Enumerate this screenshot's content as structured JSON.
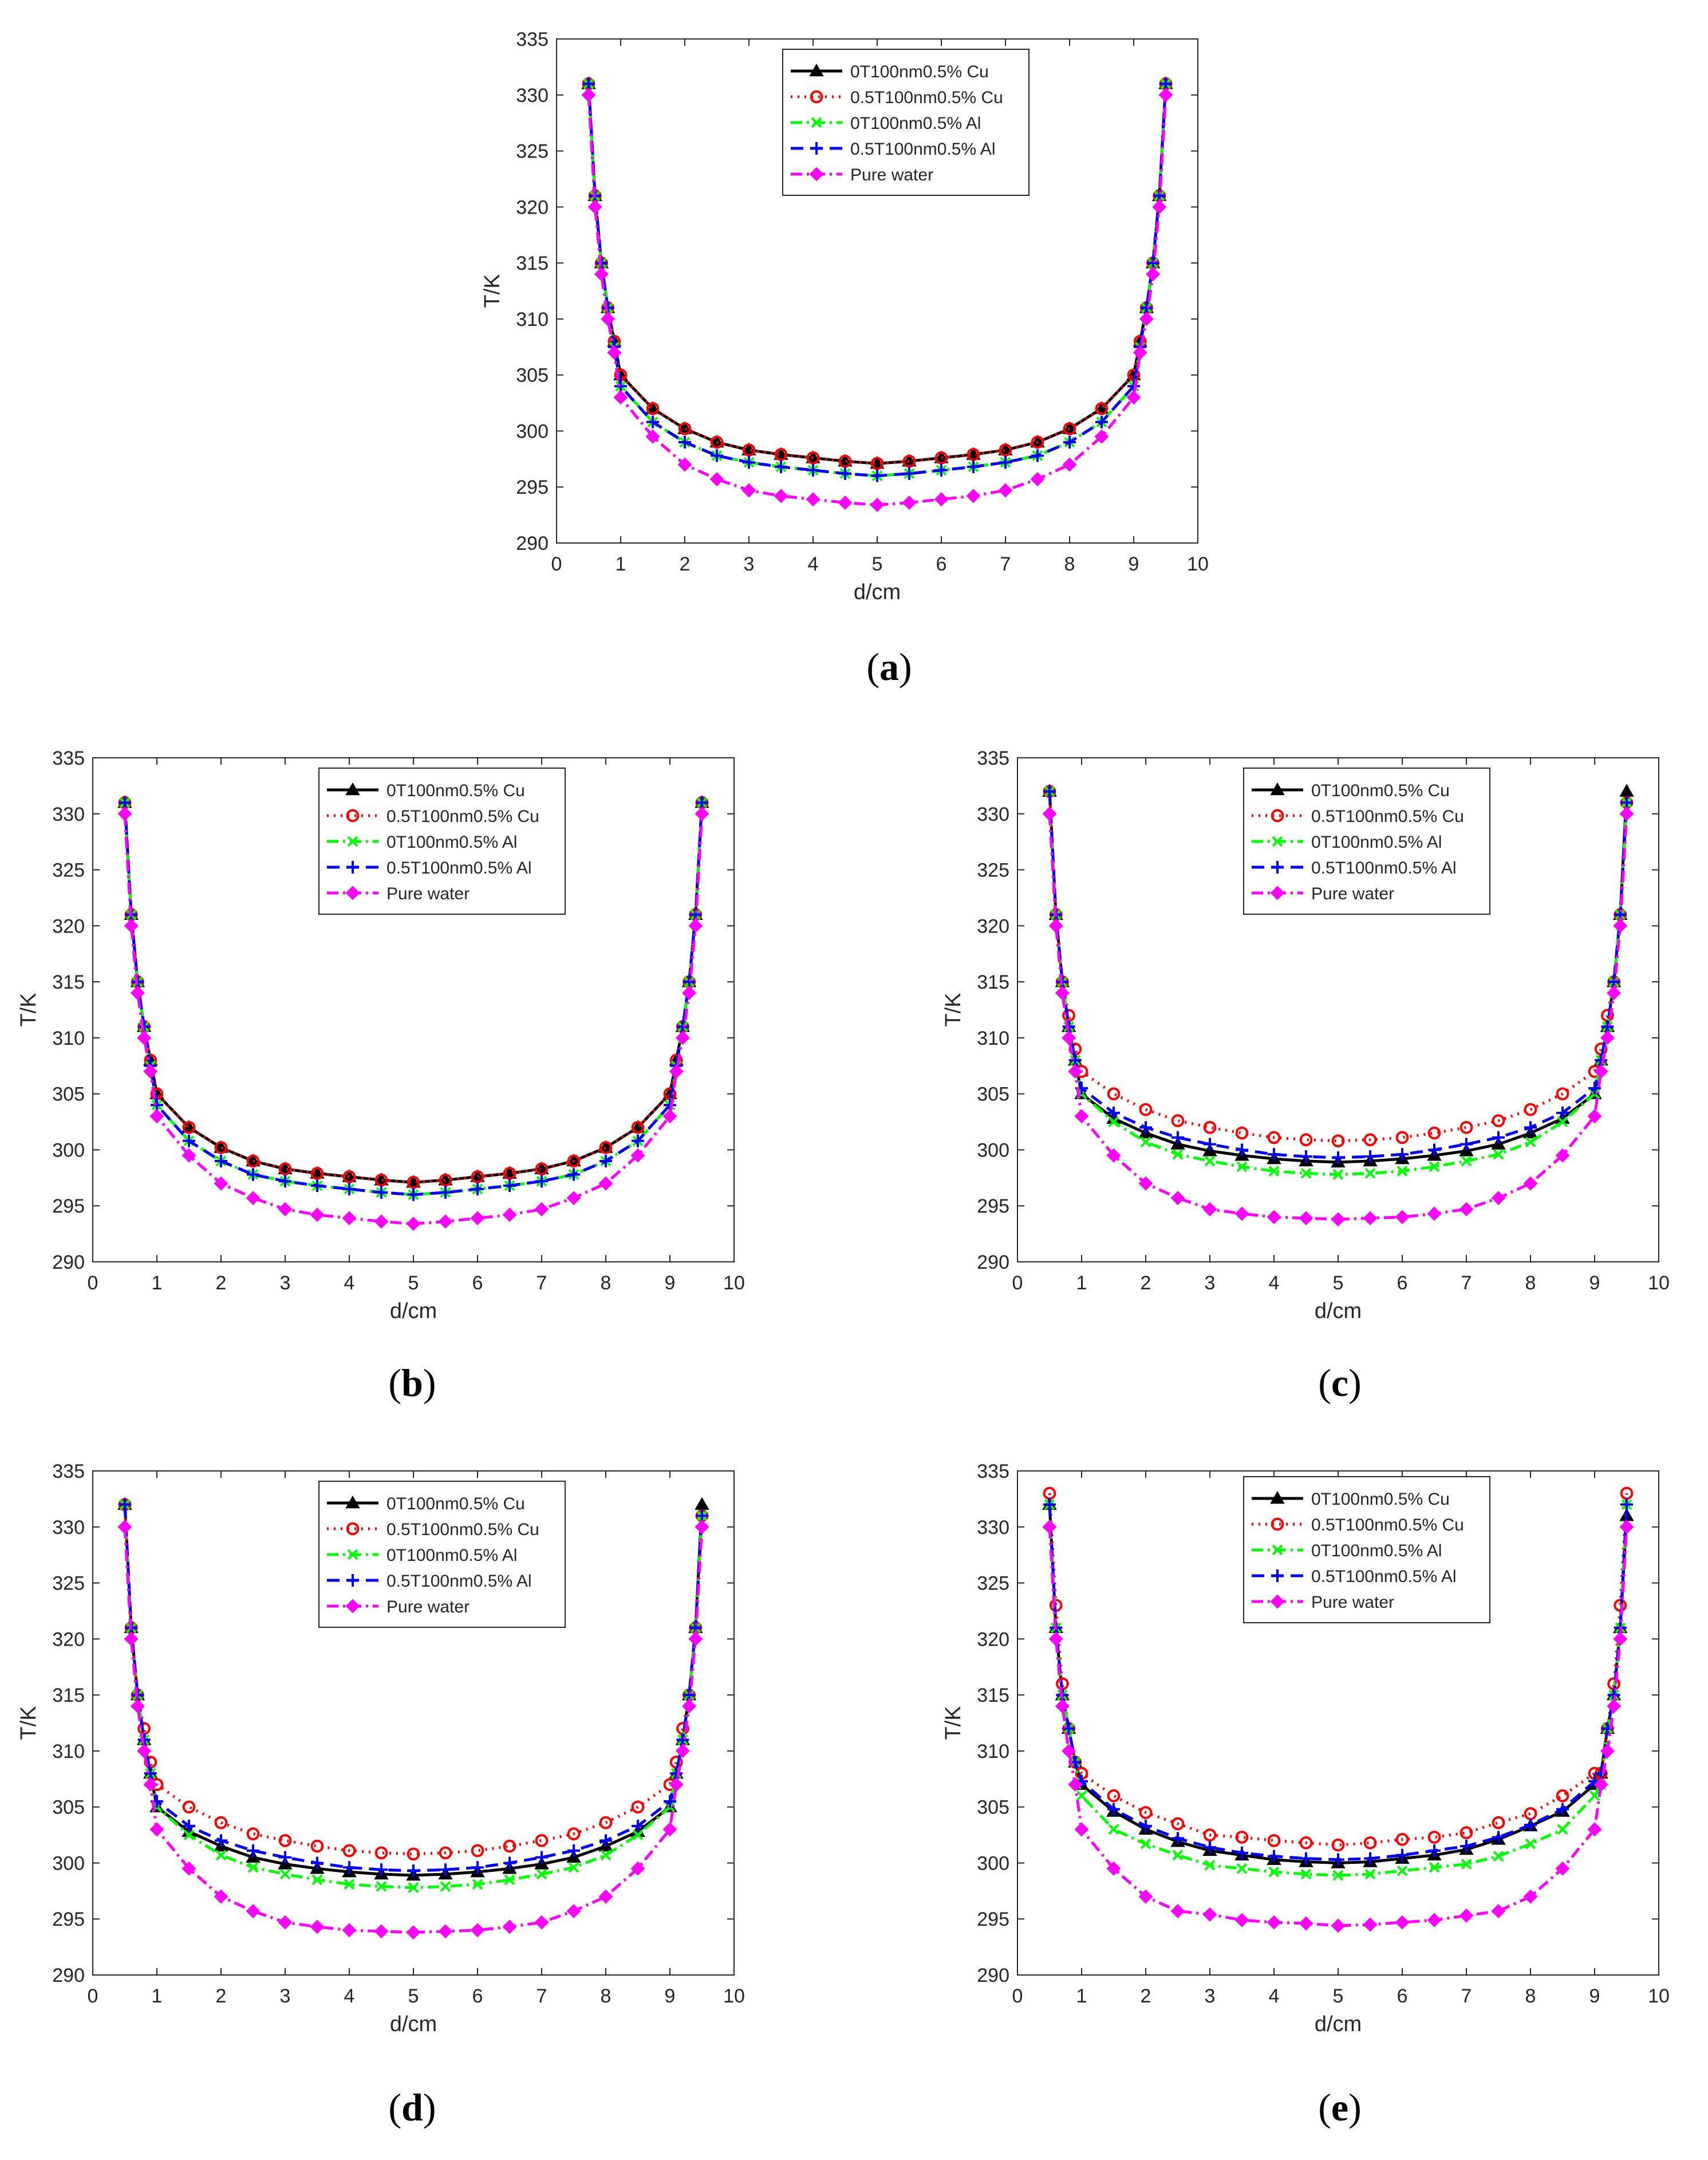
{
  "colors": {
    "axis": "#262626",
    "background": "#ffffff",
    "series": [
      "#000000",
      "#ff0000",
      "#00ff00",
      "#0000ff",
      "#ff00ff"
    ]
  },
  "chart_data": [
    {
      "type": "line",
      "panel": "a",
      "panel_label": "a",
      "xlabel": "d/cm",
      "ylabel": "T/K",
      "xlim": [
        0,
        10
      ],
      "ylim": [
        290,
        335
      ],
      "xticks": [
        "0",
        "1",
        "2",
        "3",
        "4",
        "5",
        "6",
        "7",
        "8",
        "9",
        "10"
      ],
      "yticks": [
        "290",
        "295",
        "300",
        "305",
        "310",
        "315",
        "320",
        "325",
        "330",
        "335"
      ],
      "x": [
        0.5,
        0.6,
        0.7,
        0.8,
        0.9,
        1.0,
        1.5,
        2.0,
        2.5,
        3.0,
        3.5,
        4.0,
        4.5,
        5.0,
        5.5,
        6.0,
        6.5,
        7.0,
        7.5,
        8.0,
        8.5,
        9.0,
        9.1,
        9.2,
        9.3,
        9.4,
        9.5
      ],
      "legend_position": "top-right",
      "series": [
        {
          "name": "0T100nm0.5% Cu",
          "values": [
            331,
            321,
            315,
            311,
            308,
            305,
            302,
            300.2,
            299,
            298.3,
            297.9,
            297.6,
            297.3,
            297.1,
            297.3,
            297.6,
            297.9,
            298.3,
            299,
            300.2,
            302,
            305,
            308,
            311,
            315,
            321,
            331
          ]
        },
        {
          "name": "0.5T100nm0.5% Cu",
          "values": [
            331,
            321,
            315,
            311,
            308,
            305,
            302,
            300.2,
            299,
            298.3,
            297.9,
            297.6,
            297.3,
            297.1,
            297.3,
            297.6,
            297.9,
            298.3,
            299,
            300.2,
            302,
            305,
            308,
            311,
            315,
            321,
            331
          ]
        },
        {
          "name": "0T100nm0.5% Al",
          "values": [
            331,
            321,
            315,
            311,
            307.5,
            304,
            300.8,
            299,
            297.8,
            297.2,
            296.8,
            296.5,
            296.2,
            296,
            296.2,
            296.5,
            296.8,
            297.2,
            297.8,
            299,
            300.8,
            304,
            307.5,
            311,
            315,
            321,
            331
          ]
        },
        {
          "name": "0.5T100nm0.5% Al",
          "values": [
            331,
            321,
            315,
            311,
            307.5,
            304,
            300.8,
            299,
            297.8,
            297.2,
            296.8,
            296.5,
            296.2,
            296,
            296.2,
            296.5,
            296.8,
            297.2,
            297.8,
            299,
            300.8,
            304,
            307.5,
            311,
            315,
            321,
            331
          ]
        },
        {
          "name": "Pure water",
          "values": [
            330,
            320,
            314,
            310,
            307,
            303,
            299.5,
            297,
            295.7,
            294.7,
            294.2,
            293.9,
            293.6,
            293.4,
            293.6,
            293.9,
            294.2,
            294.7,
            295.7,
            297,
            299.5,
            303,
            307,
            310,
            314,
            320,
            330
          ]
        }
      ]
    },
    {
      "type": "line",
      "panel": "b",
      "panel_label": "b",
      "xlabel": "d/cm",
      "ylabel": "T/K",
      "xlim": [
        0,
        10
      ],
      "ylim": [
        290,
        335
      ],
      "xticks": [
        "0",
        "1",
        "2",
        "3",
        "4",
        "5",
        "6",
        "7",
        "8",
        "9",
        "10"
      ],
      "yticks": [
        "290",
        "295",
        "300",
        "305",
        "310",
        "315",
        "320",
        "325",
        "330",
        "335"
      ],
      "x": [
        0.5,
        0.6,
        0.7,
        0.8,
        0.9,
        1.0,
        1.5,
        2.0,
        2.5,
        3.0,
        3.5,
        4.0,
        4.5,
        5.0,
        5.5,
        6.0,
        6.5,
        7.0,
        7.5,
        8.0,
        8.5,
        9.0,
        9.1,
        9.2,
        9.3,
        9.4,
        9.5
      ],
      "legend_position": "top-right",
      "series": [
        {
          "name": "0T100nm0.5% Cu",
          "values": [
            331,
            321,
            315,
            311,
            308,
            305,
            302,
            300.2,
            299,
            298.3,
            297.9,
            297.6,
            297.3,
            297.1,
            297.3,
            297.6,
            297.9,
            298.3,
            299,
            300.2,
            302,
            305,
            308,
            311,
            315,
            321,
            331
          ]
        },
        {
          "name": "0.5T100nm0.5% Cu",
          "values": [
            331,
            321,
            315,
            311,
            308,
            305,
            302,
            300.2,
            299,
            298.3,
            297.9,
            297.6,
            297.3,
            297.1,
            297.3,
            297.6,
            297.9,
            298.3,
            299,
            300.2,
            302,
            305,
            308,
            311,
            315,
            321,
            331
          ]
        },
        {
          "name": "0T100nm0.5% Al",
          "values": [
            331,
            321,
            315,
            311,
            307.5,
            304,
            300.8,
            299,
            297.8,
            297.2,
            296.8,
            296.5,
            296.2,
            296,
            296.2,
            296.5,
            296.8,
            297.2,
            297.8,
            299,
            300.8,
            304,
            307.5,
            311,
            315,
            321,
            331
          ]
        },
        {
          "name": "0.5T100nm0.5% Al",
          "values": [
            331,
            321,
            315,
            311,
            307.5,
            304,
            300.8,
            299,
            297.8,
            297.2,
            296.8,
            296.5,
            296.2,
            296,
            296.2,
            296.5,
            296.8,
            297.2,
            297.8,
            299,
            300.8,
            304,
            307.5,
            311,
            315,
            321,
            331
          ]
        },
        {
          "name": "Pure water",
          "values": [
            330,
            320,
            314,
            310,
            307,
            303,
            299.5,
            297,
            295.7,
            294.7,
            294.2,
            293.9,
            293.6,
            293.4,
            293.6,
            293.9,
            294.2,
            294.7,
            295.7,
            297,
            299.5,
            303,
            307,
            310,
            314,
            320,
            330
          ]
        }
      ]
    },
    {
      "type": "line",
      "panel": "c",
      "panel_label": "c",
      "xlabel": "d/cm",
      "ylabel": "T/K",
      "xlim": [
        0,
        10
      ],
      "ylim": [
        290,
        335
      ],
      "xticks": [
        "0",
        "1",
        "2",
        "3",
        "4",
        "5",
        "6",
        "7",
        "8",
        "9",
        "10"
      ],
      "yticks": [
        "290",
        "295",
        "300",
        "305",
        "310",
        "315",
        "320",
        "325",
        "330",
        "335"
      ],
      "x": [
        0.5,
        0.6,
        0.7,
        0.8,
        0.9,
        1.0,
        1.5,
        2.0,
        2.5,
        3.0,
        3.5,
        4.0,
        4.5,
        5.0,
        5.5,
        6.0,
        6.5,
        7.0,
        7.5,
        8.0,
        8.5,
        9.0,
        9.1,
        9.2,
        9.3,
        9.4,
        9.5
      ],
      "legend_position": "top-right",
      "series": [
        {
          "name": "0T100nm0.5% Cu",
          "values": [
            332,
            321,
            315,
            311,
            308,
            305,
            302.8,
            301.5,
            300.5,
            299.9,
            299.5,
            299.2,
            299,
            298.9,
            299,
            299.2,
            299.5,
            299.9,
            300.5,
            301.5,
            302.8,
            305,
            308,
            311,
            315,
            321,
            332
          ]
        },
        {
          "name": "0.5T100nm0.5% Cu",
          "values": [
            332,
            321,
            315,
            312,
            309,
            307,
            305,
            303.6,
            302.6,
            302,
            301.5,
            301.1,
            300.9,
            300.8,
            300.9,
            301.1,
            301.5,
            302,
            302.6,
            303.6,
            305,
            307,
            309,
            312,
            315,
            321,
            331
          ]
        },
        {
          "name": "0T100nm0.5% Al",
          "values": [
            332,
            321,
            315,
            311,
            308,
            305,
            302.5,
            300.7,
            299.6,
            299,
            298.5,
            298.1,
            297.9,
            297.8,
            297.9,
            298.1,
            298.5,
            299,
            299.6,
            300.7,
            302.5,
            305,
            308,
            311,
            315,
            321,
            331
          ]
        },
        {
          "name": "0.5T100nm0.5% Al",
          "values": [
            332,
            321,
            315,
            311,
            308,
            305.5,
            303.3,
            302,
            301.1,
            300.5,
            300,
            299.6,
            299.4,
            299.3,
            299.4,
            299.6,
            300,
            300.5,
            301.1,
            302,
            303.3,
            305.5,
            308,
            311,
            315,
            321,
            331
          ]
        },
        {
          "name": "Pure water",
          "values": [
            330,
            320,
            314,
            310,
            307,
            303,
            299.5,
            297,
            295.7,
            294.7,
            294.3,
            294,
            293.9,
            293.8,
            293.9,
            294,
            294.3,
            294.7,
            295.7,
            297,
            299.5,
            303,
            307,
            310,
            314,
            320,
            330
          ]
        }
      ]
    },
    {
      "type": "line",
      "panel": "d",
      "panel_label": "d",
      "xlabel": "d/cm",
      "ylabel": "T/K",
      "xlim": [
        0,
        10
      ],
      "ylim": [
        290,
        335
      ],
      "xticks": [
        "0",
        "1",
        "2",
        "3",
        "4",
        "5",
        "6",
        "7",
        "8",
        "9",
        "10"
      ],
      "yticks": [
        "290",
        "295",
        "300",
        "305",
        "310",
        "315",
        "320",
        "325",
        "330",
        "335"
      ],
      "x": [
        0.5,
        0.6,
        0.7,
        0.8,
        0.9,
        1.0,
        1.5,
        2.0,
        2.5,
        3.0,
        3.5,
        4.0,
        4.5,
        5.0,
        5.5,
        6.0,
        6.5,
        7.0,
        7.5,
        8.0,
        8.5,
        9.0,
        9.1,
        9.2,
        9.3,
        9.4,
        9.5
      ],
      "legend_position": "top-right",
      "series": [
        {
          "name": "0T100nm0.5% Cu",
          "values": [
            332,
            321,
            315,
            311,
            308,
            305,
            302.8,
            301.5,
            300.5,
            299.9,
            299.5,
            299.2,
            299,
            298.9,
            299,
            299.2,
            299.5,
            299.9,
            300.5,
            301.5,
            302.8,
            305,
            308,
            311,
            315,
            321,
            332
          ]
        },
        {
          "name": "0.5T100nm0.5% Cu",
          "values": [
            332,
            321,
            315,
            312,
            309,
            307,
            305,
            303.6,
            302.6,
            302,
            301.5,
            301.1,
            300.9,
            300.8,
            300.9,
            301.1,
            301.5,
            302,
            302.6,
            303.6,
            305,
            307,
            309,
            312,
            315,
            321,
            331
          ]
        },
        {
          "name": "0T100nm0.5% Al",
          "values": [
            332,
            321,
            315,
            311,
            308,
            305,
            302.5,
            300.7,
            299.6,
            299,
            298.5,
            298.1,
            297.9,
            297.8,
            297.9,
            298.1,
            298.5,
            299,
            299.6,
            300.7,
            302.5,
            305,
            308,
            311,
            315,
            321,
            331
          ]
        },
        {
          "name": "0.5T100nm0.5% Al",
          "values": [
            332,
            321,
            315,
            311,
            308,
            305.5,
            303.3,
            302,
            301.1,
            300.5,
            300,
            299.6,
            299.4,
            299.3,
            299.4,
            299.6,
            300,
            300.5,
            301.1,
            302,
            303.3,
            305.5,
            308,
            311,
            315,
            321,
            331
          ]
        },
        {
          "name": "Pure water",
          "values": [
            330,
            320,
            314,
            310,
            307,
            303,
            299.5,
            297,
            295.7,
            294.7,
            294.3,
            294,
            293.9,
            293.8,
            293.9,
            294,
            294.3,
            294.7,
            295.7,
            297,
            299.5,
            303,
            307,
            310,
            314,
            320,
            330
          ]
        }
      ]
    },
    {
      "type": "line",
      "panel": "e",
      "panel_label": "e",
      "xlabel": "d/cm",
      "ylabel": "T/K",
      "xlim": [
        0,
        10
      ],
      "ylim": [
        290,
        335
      ],
      "xticks": [
        "0",
        "1",
        "2",
        "3",
        "4",
        "5",
        "6",
        "7",
        "8",
        "9",
        "10"
      ],
      "yticks": [
        "290",
        "295",
        "300",
        "305",
        "310",
        "315",
        "320",
        "325",
        "330",
        "335"
      ],
      "x": [
        0.5,
        0.6,
        0.7,
        0.8,
        0.9,
        1.0,
        1.5,
        2.0,
        2.5,
        3.0,
        3.5,
        4.0,
        4.5,
        5.0,
        5.5,
        6.0,
        6.5,
        7.0,
        7.5,
        8.0,
        8.5,
        9.0,
        9.1,
        9.2,
        9.3,
        9.4,
        9.5
      ],
      "legend_position": "top-left",
      "series": [
        {
          "name": "0T100nm0.5% Cu",
          "values": [
            332,
            321,
            315,
            312,
            309,
            307,
            304.6,
            303,
            301.9,
            301.1,
            300.7,
            300.3,
            300.1,
            300,
            300.1,
            300.4,
            300.7,
            301.2,
            302.1,
            303.3,
            304.6,
            307,
            308,
            312,
            315,
            321,
            331
          ]
        },
        {
          "name": "0.5T100nm0.5% Cu",
          "values": [
            333,
            323,
            316,
            312,
            309,
            308,
            306,
            304.5,
            303.5,
            302.5,
            302.3,
            302,
            301.8,
            301.6,
            301.8,
            302.1,
            302.3,
            302.7,
            303.6,
            304.4,
            306,
            308,
            308,
            312,
            316,
            323,
            333
          ]
        },
        {
          "name": "0T100nm0.5% Al",
          "values": [
            332,
            321,
            315,
            312,
            309,
            306,
            303,
            301.7,
            300.7,
            299.8,
            299.5,
            299.2,
            299,
            298.9,
            299,
            299.3,
            299.6,
            299.9,
            300.6,
            301.7,
            303,
            306,
            307,
            312,
            315,
            321,
            332
          ]
        },
        {
          "name": "0.5T100nm0.5% Al",
          "values": [
            332,
            321,
            315,
            312,
            309,
            307.3,
            304.8,
            303.3,
            302.2,
            301.4,
            300.9,
            300.6,
            300.4,
            300.3,
            300.4,
            300.7,
            301.1,
            301.5,
            302.3,
            303.4,
            304.8,
            307.3,
            308,
            312,
            315,
            321,
            332
          ]
        },
        {
          "name": "Pure water",
          "values": [
            330,
            320,
            314,
            310,
            307,
            303,
            299.5,
            297,
            295.7,
            295.4,
            294.9,
            294.7,
            294.6,
            294.4,
            294.5,
            294.7,
            294.9,
            295.3,
            295.7,
            297,
            299.5,
            303,
            307,
            310,
            314,
            320,
            330
          ]
        }
      ]
    }
  ]
}
